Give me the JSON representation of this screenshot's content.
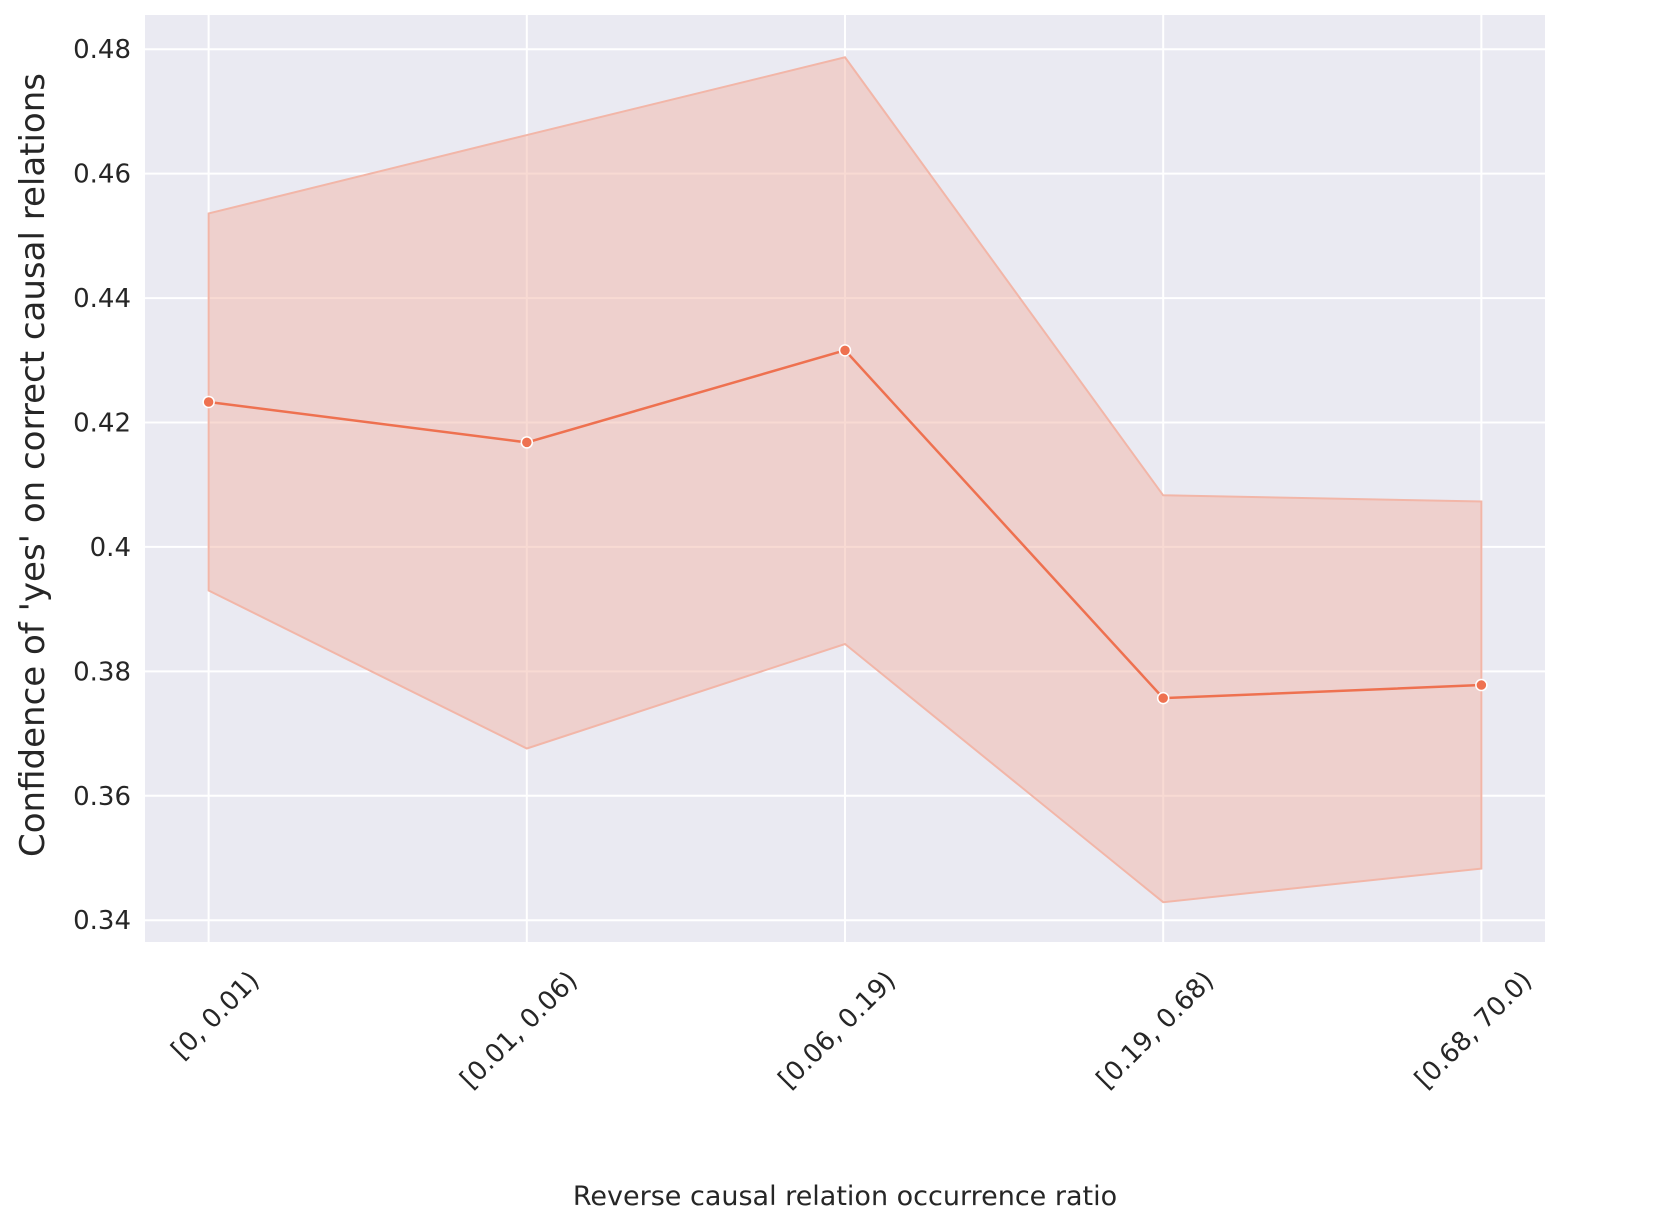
{
  "chart_data": {
    "type": "line",
    "x_label": "Reverse causal relation occurrence ratio",
    "y_label": "Confidence of 'yes' on correct causal relations",
    "categories": [
      "[0, 0.01)",
      "[0.01, 0.06)",
      "[0.06, 0.19)",
      "[0.19, 0.68)",
      "[0.68, 70.0)"
    ],
    "values": [
      0.4233,
      0.4168,
      0.4316,
      0.3757,
      0.3778
    ],
    "ci_upper": [
      0.4536,
      0.4662,
      0.4787,
      0.4083,
      0.4073
    ],
    "ci_lower": [
      0.393,
      0.3676,
      0.3844,
      0.3429,
      0.3483
    ],
    "color": "#ee7150",
    "band_color": "#f2b6a8",
    "ylim": [
      0.3365,
      0.4855
    ],
    "yticks": [
      0.34,
      0.36,
      0.38,
      0.4,
      0.42,
      0.44,
      0.46,
      0.48
    ],
    "grid": true
  }
}
